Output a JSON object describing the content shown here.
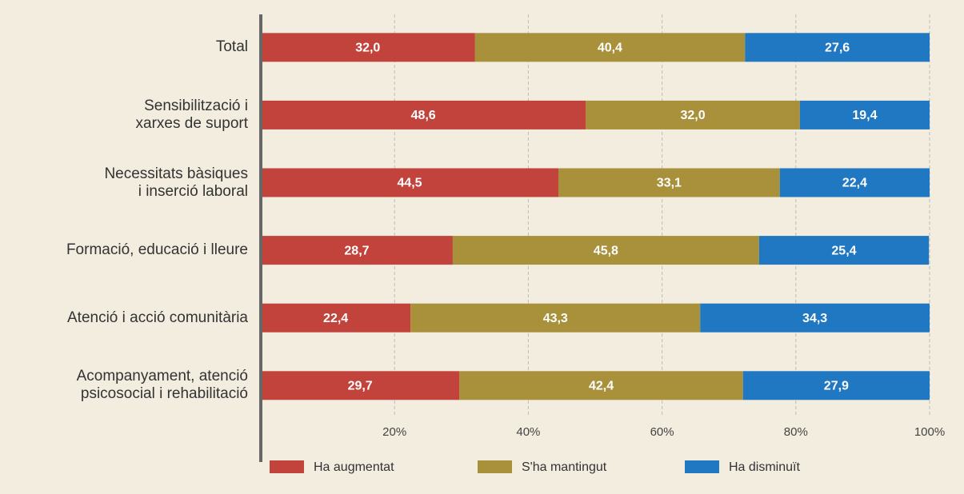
{
  "chart_data": {
    "type": "stacked-barh",
    "categories": [
      "Total",
      "Sensibilització i\nxarxes de suport",
      "Necessitats bàsiques\ni inserció laboral",
      "Formació, educació i lleure",
      "Atenció i acció comunitària",
      "Acompanyament, atenció\npsicosocial i rehabilitació"
    ],
    "series": [
      {
        "name": "Ha augmentat",
        "color": "#c1433c",
        "values": [
          32.0,
          48.6,
          44.5,
          28.7,
          22.4,
          29.7
        ],
        "value_labels": [
          "32,0",
          "48,6",
          "44,5",
          "28,7",
          "22,4",
          "29,7"
        ]
      },
      {
        "name": "S'ha mantingut",
        "color": "#a8913a",
        "values": [
          40.4,
          32.0,
          33.1,
          45.8,
          43.3,
          42.4
        ],
        "value_labels": [
          "40,4",
          "32,0",
          "33,1",
          "45,8",
          "43,3",
          "42,4"
        ]
      },
      {
        "name": "Ha disminuït",
        "color": "#1f78c1",
        "values": [
          27.6,
          19.4,
          22.4,
          25.4,
          34.3,
          27.9
        ],
        "value_labels": [
          "27,6",
          "19,4",
          "22,4",
          "25,4",
          "34,3",
          "27,9"
        ]
      }
    ],
    "xlim": [
      0,
      100
    ],
    "xticks": [
      {
        "value": 20,
        "label": "20%"
      },
      {
        "value": 40,
        "label": "40%"
      },
      {
        "value": 60,
        "label": "60%"
      },
      {
        "value": 80,
        "label": "80%"
      },
      {
        "value": 100,
        "label": "100%"
      }
    ],
    "grid": true,
    "legend": "bottom"
  }
}
